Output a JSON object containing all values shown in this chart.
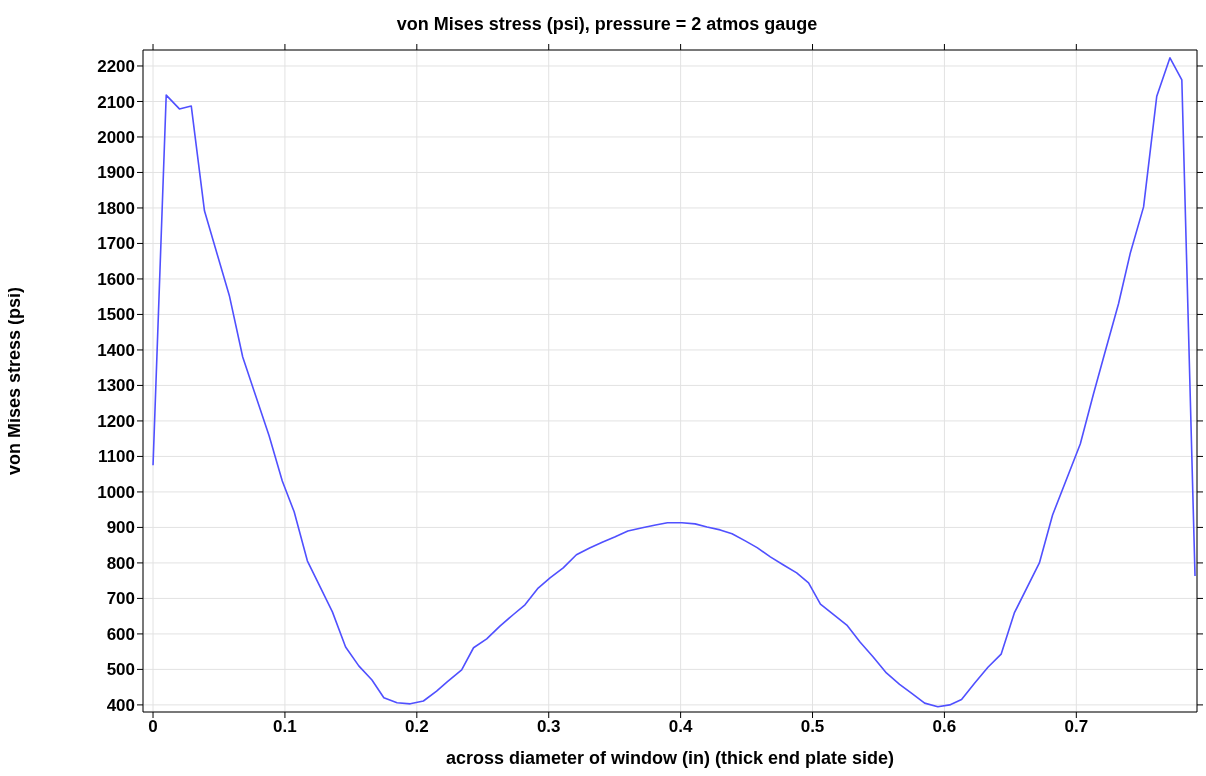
{
  "chart_data": {
    "type": "line",
    "title": "von Mises stress (psi), pressure = 2 atmos gauge",
    "xlabel": "across diameter of window (in) (thick end plate side)",
    "ylabel": "von Mises stress (psi)",
    "x": [
      0,
      0.01,
      0.02,
      0.029,
      0.039,
      0.058,
      0.068,
      0.088,
      0.098,
      0.107,
      0.117,
      0.136,
      0.146,
      0.156,
      0.166,
      0.175,
      0.185,
      0.195,
      0.205,
      0.215,
      0.223,
      0.234,
      0.243,
      0.253,
      0.263,
      0.273,
      0.282,
      0.292,
      0.301,
      0.311,
      0.321,
      0.331,
      0.341,
      0.35,
      0.36,
      0.371,
      0.381,
      0.39,
      0.401,
      0.411,
      0.42,
      0.43,
      0.439,
      0.449,
      0.458,
      0.468,
      0.478,
      0.488,
      0.497,
      0.506,
      0.526,
      0.536,
      0.546,
      0.556,
      0.566,
      0.575,
      0.585,
      0.595,
      0.604,
      0.613,
      0.623,
      0.633,
      0.643,
      0.653,
      0.672,
      0.682,
      0.703,
      0.713,
      0.722,
      0.732,
      0.741,
      0.751,
      0.761,
      0.771,
      0.78,
      0.79
    ],
    "series": [
      {
        "color": "#5050ff",
        "values": [
          1075,
          2118,
          2079,
          2087,
          1792,
          1551,
          1380,
          1158,
          1031,
          944,
          806,
          662,
          563,
          510,
          470,
          420,
          406,
          403,
          411,
          439,
          465,
          499,
          561,
          586,
          622,
          654,
          682,
          729,
          758,
          786,
          823,
          842,
          859,
          873,
          890,
          899,
          907,
          913,
          913,
          910,
          901,
          893,
          882,
          862,
          843,
          817,
          794,
          772,
          744,
          684,
          625,
          577,
          535,
          490,
          458,
          433,
          405,
          395,
          400,
          415,
          462,
          506,
          543,
          659,
          800,
          935,
          1135,
          1276,
          1397,
          1530,
          1674,
          1803,
          2115,
          2223,
          2161,
          763
        ]
      }
    ],
    "xlim": [
      -0.0076,
      0.7915
    ],
    "xticks": [
      0,
      0.1,
      0.2,
      0.3,
      0.4,
      0.5,
      0.6,
      0.7
    ],
    "ylim": [
      380,
      2245
    ],
    "yticks": [
      400,
      500,
      600,
      700,
      800,
      900,
      1000,
      1100,
      1200,
      1300,
      1400,
      1500,
      1600,
      1700,
      1800,
      1900,
      2000,
      2100,
      2200
    ],
    "grid": true,
    "legend": false,
    "marker": "none",
    "line_style": "solid"
  }
}
